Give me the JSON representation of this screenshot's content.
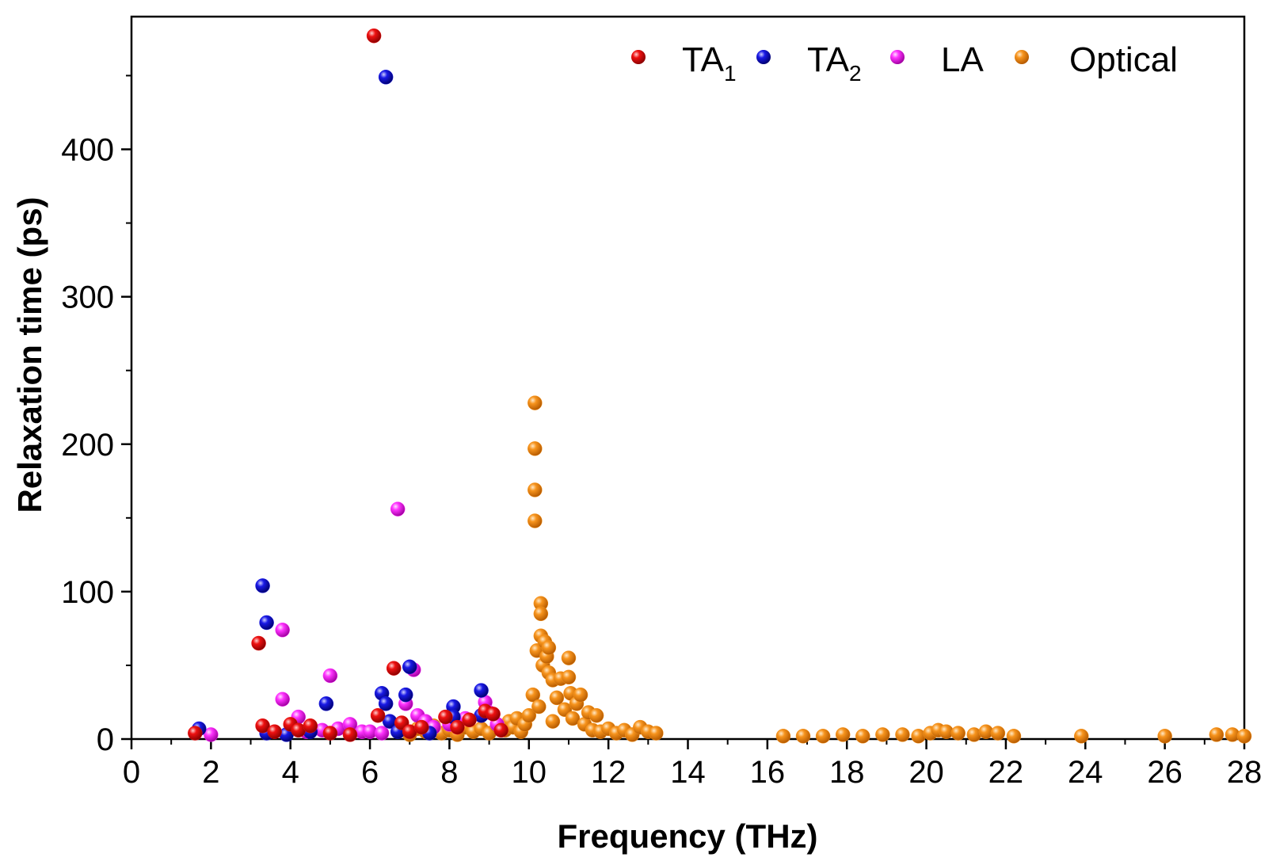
{
  "chart_data": {
    "type": "scatter",
    "xlabel": "Frequency (THz)",
    "ylabel": "Relaxation time (ps)",
    "xlim": [
      0,
      28
    ],
    "ylim": [
      0,
      490
    ],
    "xticks": [
      0,
      2,
      4,
      6,
      8,
      10,
      12,
      14,
      16,
      18,
      20,
      22,
      24,
      26,
      28
    ],
    "yticks": [
      0,
      100,
      200,
      300,
      400
    ],
    "grid": false,
    "legend_position": "top-right",
    "series": [
      {
        "name": "TA",
        "subscript": "1",
        "color": "#ee1111",
        "points": [
          [
            1.6,
            4
          ],
          [
            3.2,
            65
          ],
          [
            3.3,
            9
          ],
          [
            3.6,
            5
          ],
          [
            4.0,
            10
          ],
          [
            4.2,
            6
          ],
          [
            4.5,
            9
          ],
          [
            5.0,
            4
          ],
          [
            5.5,
            3
          ],
          [
            6.1,
            477
          ],
          [
            6.2,
            16
          ],
          [
            6.6,
            48
          ],
          [
            6.8,
            11
          ],
          [
            7.0,
            5
          ],
          [
            7.3,
            8
          ],
          [
            7.9,
            15
          ],
          [
            8.2,
            8
          ],
          [
            8.5,
            13
          ],
          [
            8.9,
            19
          ],
          [
            9.1,
            17
          ],
          [
            9.3,
            6
          ]
        ]
      },
      {
        "name": "TA",
        "subscript": "2",
        "color": "#1a1ae6",
        "points": [
          [
            1.7,
            7
          ],
          [
            3.3,
            104
          ],
          [
            3.4,
            79
          ],
          [
            3.4,
            4
          ],
          [
            3.9,
            3
          ],
          [
            4.5,
            5
          ],
          [
            4.9,
            24
          ],
          [
            6.3,
            31
          ],
          [
            6.4,
            449
          ],
          [
            6.4,
            24
          ],
          [
            6.5,
            12
          ],
          [
            6.7,
            5
          ],
          [
            6.9,
            30
          ],
          [
            7.0,
            49
          ],
          [
            7.5,
            4
          ],
          [
            8.1,
            22
          ],
          [
            8.1,
            15
          ],
          [
            8.8,
            33
          ],
          [
            8.8,
            16
          ]
        ]
      },
      {
        "name": "LA",
        "subscript": "",
        "color": "#ff33ff",
        "points": [
          [
            2.0,
            3
          ],
          [
            3.8,
            74
          ],
          [
            3.8,
            27
          ],
          [
            4.2,
            15
          ],
          [
            4.4,
            5
          ],
          [
            4.8,
            6
          ],
          [
            5.0,
            43
          ],
          [
            5.2,
            7
          ],
          [
            5.5,
            10
          ],
          [
            5.8,
            5
          ],
          [
            6.0,
            5
          ],
          [
            6.3,
            4
          ],
          [
            6.7,
            156
          ],
          [
            6.9,
            24
          ],
          [
            7.1,
            47
          ],
          [
            7.2,
            16
          ],
          [
            7.4,
            12
          ],
          [
            7.6,
            8
          ],
          [
            8.0,
            10
          ],
          [
            8.4,
            14
          ],
          [
            8.9,
            25
          ],
          [
            9.0,
            18
          ],
          [
            9.2,
            10
          ]
        ]
      },
      {
        "name": "Optical",
        "subscript": "",
        "color": "#f7941d",
        "points": [
          [
            7.0,
            3
          ],
          [
            7.2,
            7
          ],
          [
            7.4,
            5
          ],
          [
            7.6,
            9
          ],
          [
            7.8,
            4
          ],
          [
            8.0,
            6
          ],
          [
            8.2,
            3
          ],
          [
            8.4,
            8
          ],
          [
            8.6,
            5
          ],
          [
            8.8,
            7
          ],
          [
            9.0,
            4
          ],
          [
            9.2,
            9
          ],
          [
            9.4,
            6
          ],
          [
            9.5,
            12
          ],
          [
            9.6,
            8
          ],
          [
            9.7,
            14
          ],
          [
            9.8,
            5
          ],
          [
            9.9,
            10
          ],
          [
            10.0,
            16
          ],
          [
            10.1,
            30
          ],
          [
            10.15,
            228
          ],
          [
            10.15,
            197
          ],
          [
            10.15,
            169
          ],
          [
            10.15,
            148
          ],
          [
            10.2,
            60
          ],
          [
            10.25,
            22
          ],
          [
            10.3,
            92
          ],
          [
            10.3,
            85
          ],
          [
            10.3,
            70
          ],
          [
            10.35,
            50
          ],
          [
            10.4,
            66
          ],
          [
            10.45,
            56
          ],
          [
            10.5,
            45
          ],
          [
            10.5,
            62
          ],
          [
            10.6,
            40
          ],
          [
            10.6,
            12
          ],
          [
            10.7,
            28
          ],
          [
            10.8,
            41
          ],
          [
            10.9,
            20
          ],
          [
            11.0,
            55
          ],
          [
            11.0,
            42
          ],
          [
            11.05,
            31
          ],
          [
            11.1,
            14
          ],
          [
            11.2,
            24
          ],
          [
            11.3,
            30
          ],
          [
            11.4,
            10
          ],
          [
            11.5,
            18
          ],
          [
            11.6,
            6
          ],
          [
            11.7,
            16
          ],
          [
            11.8,
            5
          ],
          [
            12.0,
            7
          ],
          [
            12.2,
            4
          ],
          [
            12.4,
            6
          ],
          [
            12.6,
            3
          ],
          [
            12.8,
            8
          ],
          [
            13.0,
            5
          ],
          [
            13.2,
            4
          ],
          [
            16.4,
            2
          ],
          [
            16.9,
            2
          ],
          [
            17.4,
            2
          ],
          [
            17.9,
            3
          ],
          [
            18.4,
            2
          ],
          [
            18.9,
            3
          ],
          [
            19.4,
            3
          ],
          [
            19.8,
            2
          ],
          [
            20.1,
            4
          ],
          [
            20.3,
            6
          ],
          [
            20.5,
            5
          ],
          [
            20.8,
            4
          ],
          [
            21.2,
            3
          ],
          [
            21.5,
            5
          ],
          [
            21.8,
            4
          ],
          [
            22.2,
            2
          ],
          [
            23.9,
            2
          ],
          [
            26.0,
            2
          ],
          [
            27.3,
            3
          ],
          [
            27.7,
            3
          ],
          [
            28.0,
            2
          ]
        ]
      }
    ]
  }
}
